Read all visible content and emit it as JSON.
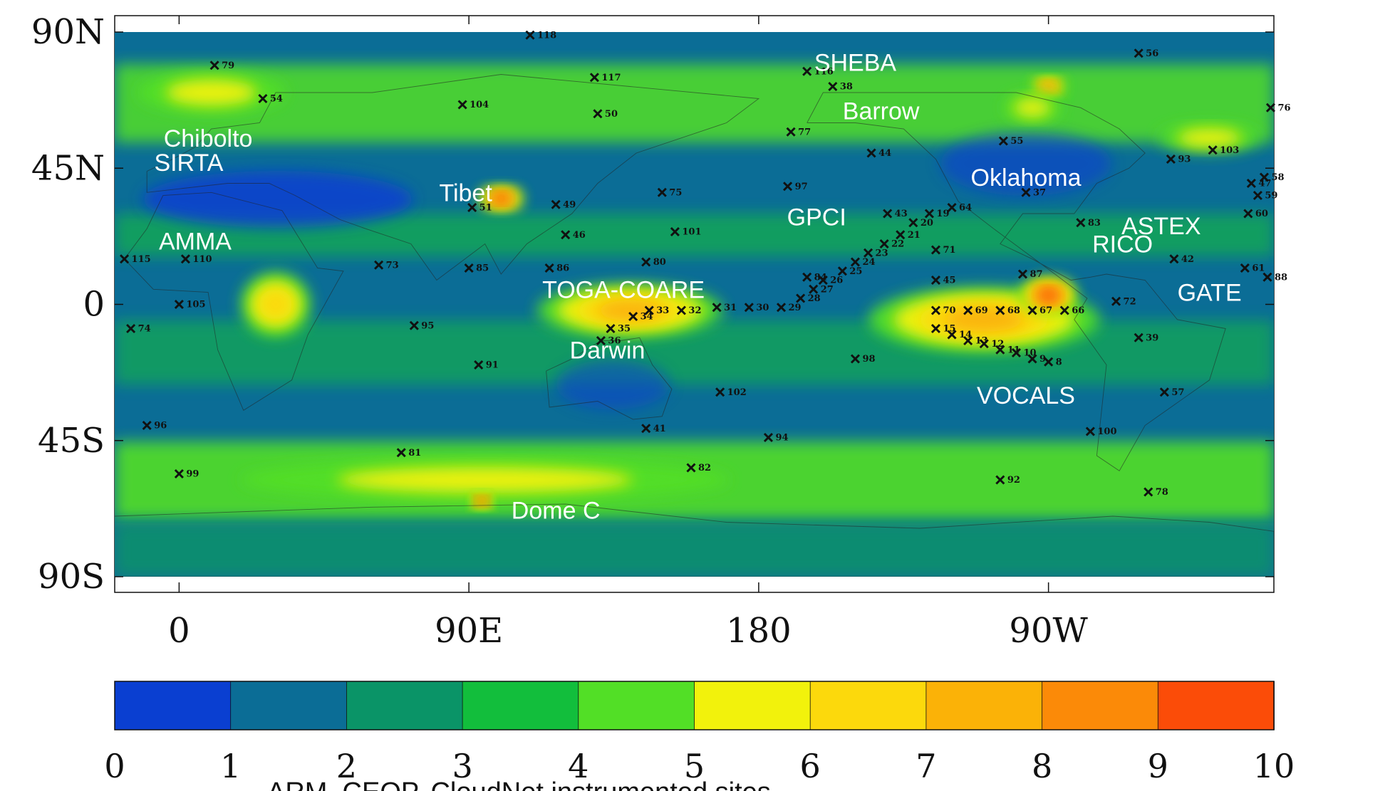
{
  "map": {
    "lat_ticks": [
      "90N",
      "45N",
      "0",
      "45S",
      "90S"
    ],
    "lon_ticks": [
      "0",
      "90E",
      "180",
      "90W"
    ],
    "colorbar": {
      "labels": [
        "0",
        "1",
        "2",
        "3",
        "4",
        "5",
        "6",
        "7",
        "8",
        "9",
        "10"
      ],
      "colors": [
        "#0a3fd1",
        "#0b6d96",
        "#0a9467",
        "#12be3c",
        "#52df26",
        "#f2f20c",
        "#fcd90c",
        "#fbb207",
        "#fb8a08",
        "#fb4c08"
      ]
    },
    "caption": "ARM, CEOP, CloudNet instrumented sites",
    "background_color": "#0b6d96"
  },
  "chart_data": {
    "type": "map",
    "xlim": [
      -20,
      340
    ],
    "ylim": [
      -90,
      90
    ],
    "value_range": [
      0,
      10
    ],
    "regions": [
      {
        "lon": 10,
        "lat": 70,
        "rx": 22,
        "ry": 6,
        "level": 5
      },
      {
        "lon": 100,
        "lat": 35,
        "rx": 6,
        "ry": 3,
        "level": 9
      },
      {
        "lon": 140,
        "lat": -2,
        "rx": 28,
        "ry": 8,
        "level": 7
      },
      {
        "lon": 250,
        "lat": -5,
        "rx": 35,
        "ry": 10,
        "level": 7
      },
      {
        "lon": 270,
        "lat": 3,
        "rx": 8,
        "ry": 5,
        "level": 9
      },
      {
        "lon": 95,
        "lat": -58,
        "rx": 75,
        "ry": 6,
        "level": 5
      },
      {
        "lon": 30,
        "lat": 0,
        "rx": 10,
        "ry": 10,
        "level": 6
      },
      {
        "lon": 270,
        "lat": 72,
        "rx": 4,
        "ry": 2,
        "level": 8
      },
      {
        "lon": 265,
        "lat": 65,
        "rx": 8,
        "ry": 4,
        "level": 5
      },
      {
        "lon": 94,
        "lat": -65,
        "rx": 2,
        "ry": 1.5,
        "level": 9
      },
      {
        "lon": 320,
        "lat": 55,
        "rx": 15,
        "ry": 4,
        "level": 5
      }
    ],
    "labels": [
      {
        "text": "SHEBA",
        "lon": 210,
        "lat": 80
      },
      {
        "text": "Barrow",
        "lon": 218,
        "lat": 64
      },
      {
        "text": "Chibolto",
        "lon": 9,
        "lat": 55
      },
      {
        "text": "SIRTA",
        "lon": 3,
        "lat": 47
      },
      {
        "text": "Tibet",
        "lon": 89,
        "lat": 37
      },
      {
        "text": "AMMA",
        "lon": 5,
        "lat": 21
      },
      {
        "text": "Oklahoma",
        "lon": 263,
        "lat": 42
      },
      {
        "text": "GPCI",
        "lon": 198,
        "lat": 29
      },
      {
        "text": "ASTEX",
        "lon": 305,
        "lat": 26
      },
      {
        "text": "RICO",
        "lon": 293,
        "lat": 20
      },
      {
        "text": "TOGA-COARE",
        "lon": 138,
        "lat": 5
      },
      {
        "text": "GATE",
        "lon": 320,
        "lat": 4
      },
      {
        "text": "Darwin",
        "lon": 133,
        "lat": -15
      },
      {
        "text": "VOCALS",
        "lon": 263,
        "lat": -30
      },
      {
        "text": "Dome C",
        "lon": 117,
        "lat": -68
      }
    ],
    "sites": [
      {
        "id": "118",
        "lon": 109,
        "lat": 89
      },
      {
        "id": "79",
        "lon": 11,
        "lat": 79
      },
      {
        "id": "54",
        "lon": 26,
        "lat": 68
      },
      {
        "id": "104",
        "lon": 88,
        "lat": 66
      },
      {
        "id": "117",
        "lon": 129,
        "lat": 75
      },
      {
        "id": "50",
        "lon": 130,
        "lat": 63
      },
      {
        "id": "116",
        "lon": 195,
        "lat": 77
      },
      {
        "id": "38",
        "lon": 203,
        "lat": 72
      },
      {
        "id": "56",
        "lon": 298,
        "lat": 83
      },
      {
        "id": "76",
        "lon": 339,
        "lat": 65
      },
      {
        "id": "77",
        "lon": 190,
        "lat": 57
      },
      {
        "id": "55",
        "lon": 256,
        "lat": 54
      },
      {
        "id": "44",
        "lon": 215,
        "lat": 50
      },
      {
        "id": "93",
        "lon": 308,
        "lat": 48
      },
      {
        "id": "103",
        "lon": 321,
        "lat": 51
      },
      {
        "id": "97",
        "lon": 189,
        "lat": 39
      },
      {
        "id": "75",
        "lon": 150,
        "lat": 37
      },
      {
        "id": "37",
        "lon": 263,
        "lat": 37
      },
      {
        "id": "58",
        "lon": 337,
        "lat": 42
      },
      {
        "id": "47",
        "lon": 333,
        "lat": 40
      },
      {
        "id": "59",
        "lon": 335,
        "lat": 36
      },
      {
        "id": "49",
        "lon": 117,
        "lat": 33
      },
      {
        "id": "51",
        "lon": 91,
        "lat": 32
      },
      {
        "id": "43",
        "lon": 220,
        "lat": 30
      },
      {
        "id": "19",
        "lon": 233,
        "lat": 30
      },
      {
        "id": "64",
        "lon": 240,
        "lat": 32
      },
      {
        "id": "83",
        "lon": 280,
        "lat": 27
      },
      {
        "id": "60",
        "lon": 332,
        "lat": 30
      },
      {
        "id": "20",
        "lon": 228,
        "lat": 27
      },
      {
        "id": "21",
        "lon": 224,
        "lat": 23
      },
      {
        "id": "101",
        "lon": 154,
        "lat": 24
      },
      {
        "id": "46",
        "lon": 120,
        "lat": 23
      },
      {
        "id": "22",
        "lon": 219,
        "lat": 20
      },
      {
        "id": "71",
        "lon": 235,
        "lat": 18
      },
      {
        "id": "23",
        "lon": 214,
        "lat": 17
      },
      {
        "id": "115",
        "lon": -17,
        "lat": 15
      },
      {
        "id": "110",
        "lon": 2,
        "lat": 15
      },
      {
        "id": "73",
        "lon": 62,
        "lat": 13
      },
      {
        "id": "85",
        "lon": 90,
        "lat": 12
      },
      {
        "id": "86",
        "lon": 115,
        "lat": 12
      },
      {
        "id": "80",
        "lon": 145,
        "lat": 14
      },
      {
        "id": "24",
        "lon": 210,
        "lat": 14
      },
      {
        "id": "42",
        "lon": 309,
        "lat": 15
      },
      {
        "id": "61",
        "lon": 331,
        "lat": 12
      },
      {
        "id": "25",
        "lon": 206,
        "lat": 11
      },
      {
        "id": "87",
        "lon": 262,
        "lat": 10
      },
      {
        "id": "88",
        "lon": 338,
        "lat": 9
      },
      {
        "id": "45",
        "lon": 235,
        "lat": 8
      },
      {
        "id": "84",
        "lon": 195,
        "lat": 9
      },
      {
        "id": "26",
        "lon": 200,
        "lat": 8
      },
      {
        "id": "27",
        "lon": 197,
        "lat": 5
      },
      {
        "id": "28",
        "lon": 193,
        "lat": 2
      },
      {
        "id": "105",
        "lon": 0,
        "lat": 0
      },
      {
        "id": "72",
        "lon": 291,
        "lat": 1
      },
      {
        "id": "33",
        "lon": 146,
        "lat": -2
      },
      {
        "id": "32",
        "lon": 156,
        "lat": -2
      },
      {
        "id": "31",
        "lon": 167,
        "lat": -1
      },
      {
        "id": "30",
        "lon": 177,
        "lat": -1
      },
      {
        "id": "29",
        "lon": 187,
        "lat": -1
      },
      {
        "id": "70",
        "lon": 235,
        "lat": -2
      },
      {
        "id": "69",
        "lon": 245,
        "lat": -2
      },
      {
        "id": "68",
        "lon": 255,
        "lat": -2
      },
      {
        "id": "67",
        "lon": 265,
        "lat": -2
      },
      {
        "id": "66",
        "lon": 275,
        "lat": -2
      },
      {
        "id": "34",
        "lon": 141,
        "lat": -4
      },
      {
        "id": "35",
        "lon": 134,
        "lat": -8
      },
      {
        "id": "74",
        "lon": -15,
        "lat": -8
      },
      {
        "id": "95",
        "lon": 73,
        "lat": -7
      },
      {
        "id": "36",
        "lon": 131,
        "lat": -12
      },
      {
        "id": "39",
        "lon": 298,
        "lat": -11
      },
      {
        "id": "15",
        "lon": 235,
        "lat": -8
      },
      {
        "id": "14",
        "lon": 240,
        "lat": -10
      },
      {
        "id": "13",
        "lon": 245,
        "lat": -12
      },
      {
        "id": "12",
        "lon": 250,
        "lat": -13
      },
      {
        "id": "11",
        "lon": 255,
        "lat": -15
      },
      {
        "id": "10",
        "lon": 260,
        "lat": -16
      },
      {
        "id": "9",
        "lon": 265,
        "lat": -18
      },
      {
        "id": "8",
        "lon": 270,
        "lat": -19
      },
      {
        "id": "91",
        "lon": 93,
        "lat": -20
      },
      {
        "id": "98",
        "lon": 210,
        "lat": -18
      },
      {
        "id": "57",
        "lon": 306,
        "lat": -29
      },
      {
        "id": "102",
        "lon": 168,
        "lat": -29
      },
      {
        "id": "96",
        "lon": -10,
        "lat": -40
      },
      {
        "id": "41",
        "lon": 145,
        "lat": -41
      },
      {
        "id": "94",
        "lon": 183,
        "lat": -44
      },
      {
        "id": "100",
        "lon": 283,
        "lat": -42
      },
      {
        "id": "81",
        "lon": 69,
        "lat": -49
      },
      {
        "id": "82",
        "lon": 159,
        "lat": -54
      },
      {
        "id": "99",
        "lon": 0,
        "lat": -56
      },
      {
        "id": "92",
        "lon": 255,
        "lat": -58
      },
      {
        "id": "78",
        "lon": 301,
        "lat": -62
      }
    ]
  }
}
